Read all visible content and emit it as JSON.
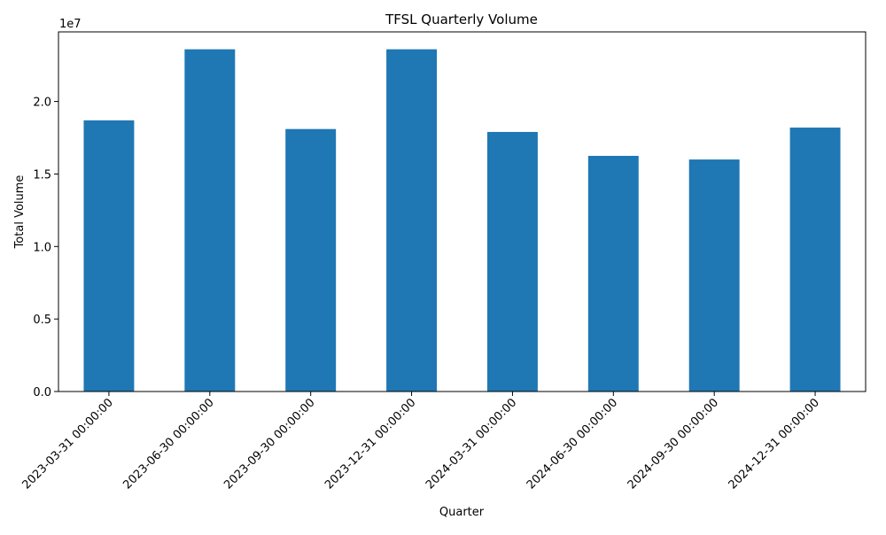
{
  "chart_data": {
    "type": "bar",
    "title": "TFSL Quarterly Volume",
    "xlabel": "Quarter",
    "ylabel": "Total Volume",
    "y_offset_label": "1e7",
    "categories": [
      "2023-03-31 00:00:00",
      "2023-06-30 00:00:00",
      "2023-09-30 00:00:00",
      "2023-12-31 00:00:00",
      "2024-03-31 00:00:00",
      "2024-06-30 00:00:00",
      "2024-09-30 00:00:00",
      "2024-12-31 00:00:00"
    ],
    "values": [
      18700000,
      23600000,
      18100000,
      23600000,
      17900000,
      16250000,
      16000000,
      18200000
    ],
    "ylim": [
      0,
      24800000
    ],
    "y_ticks": [
      0,
      5000000,
      10000000,
      15000000,
      20000000
    ],
    "y_tick_labels": [
      "0.0",
      "0.5",
      "1.0",
      "1.5",
      "2.0"
    ],
    "bar_color": "#1f77b4",
    "grid": false,
    "legend": "none"
  }
}
